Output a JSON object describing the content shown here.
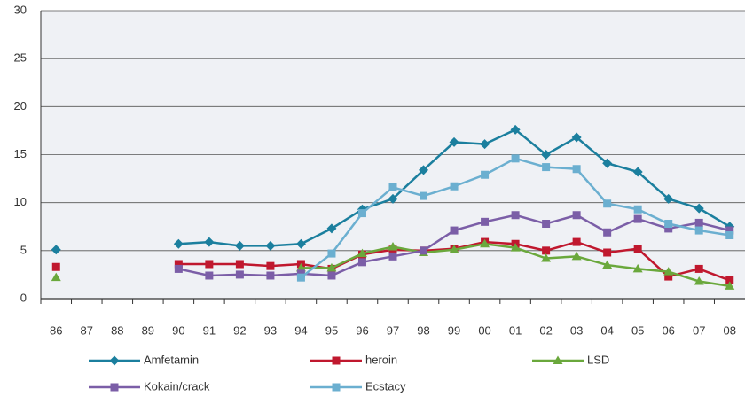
{
  "chart_data": {
    "type": "line",
    "categories": [
      "86",
      "87",
      "88",
      "89",
      "90",
      "91",
      "92",
      "93",
      "94",
      "95",
      "96",
      "97",
      "98",
      "99",
      "00",
      "01",
      "02",
      "03",
      "04",
      "05",
      "06",
      "07",
      "08"
    ],
    "series": [
      {
        "name": "Amfetamin",
        "color": "#1b7f9e",
        "marker": "diamond",
        "values": [
          5.1,
          null,
          null,
          null,
          5.7,
          5.9,
          5.5,
          5.5,
          5.7,
          7.3,
          9.3,
          10.4,
          13.4,
          16.3,
          16.1,
          17.6,
          15.0,
          16.8,
          14.1,
          13.2,
          10.4,
          9.4,
          7.5
        ]
      },
      {
        "name": "heroin",
        "color": "#c0182e",
        "marker": "square",
        "values": [
          3.3,
          null,
          null,
          null,
          3.6,
          3.6,
          3.6,
          3.4,
          3.6,
          3.1,
          4.6,
          5.1,
          5.0,
          5.2,
          5.9,
          5.7,
          5.0,
          5.9,
          4.8,
          5.2,
          2.3,
          3.1,
          1.9
        ]
      },
      {
        "name": "LSD",
        "color": "#6aa83c",
        "marker": "triangle",
        "values": [
          2.2,
          null,
          null,
          null,
          null,
          null,
          null,
          null,
          3.2,
          3.2,
          4.7,
          5.4,
          4.8,
          5.1,
          5.7,
          5.3,
          4.2,
          4.4,
          3.5,
          3.1,
          2.8,
          1.8,
          1.3
        ]
      },
      {
        "name": "Kokain/crack",
        "color": "#7b5ea7",
        "marker": "square",
        "values": [
          null,
          null,
          null,
          null,
          3.1,
          2.4,
          2.5,
          2.4,
          2.6,
          2.4,
          3.8,
          4.4,
          5.0,
          7.1,
          8.0,
          8.7,
          7.8,
          8.7,
          6.9,
          8.3,
          7.3,
          7.9,
          7.1
        ]
      },
      {
        "name": "Ecstacy",
        "color": "#6bafd0",
        "marker": "square",
        "values": [
          null,
          null,
          null,
          null,
          null,
          null,
          null,
          null,
          2.2,
          4.7,
          8.9,
          11.6,
          10.7,
          11.7,
          12.9,
          14.6,
          13.7,
          13.5,
          9.9,
          9.3,
          7.8,
          7.1,
          6.6
        ]
      }
    ],
    "ylim": [
      0,
      30
    ],
    "yticks": [
      0,
      5,
      10,
      15,
      20,
      25,
      30
    ],
    "grid": true
  }
}
